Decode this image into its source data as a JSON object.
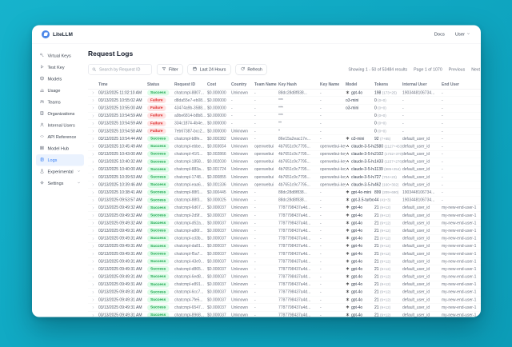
{
  "window": {
    "brand": "LiteLLM",
    "docs_label": "Docs",
    "user_label": "User"
  },
  "sidebar": {
    "items": [
      {
        "label": "Virtual Keys",
        "icon": "key-icon"
      },
      {
        "label": "Test Key",
        "icon": "play-icon"
      },
      {
        "label": "Models",
        "icon": "cube-icon"
      },
      {
        "label": "Usage",
        "icon": "bar-chart-icon"
      },
      {
        "label": "Teams",
        "icon": "users-icon"
      },
      {
        "label": "Organizations",
        "icon": "building-icon"
      },
      {
        "label": "Internal Users",
        "icon": "user-icon"
      },
      {
        "label": "API Reference",
        "icon": "code-icon"
      },
      {
        "label": "Model Hub",
        "icon": "grid-icon"
      },
      {
        "label": "Logs",
        "icon": "logs-icon",
        "active": true
      },
      {
        "label": "Experimental",
        "icon": "flask-icon",
        "expandable": true
      },
      {
        "label": "Settings",
        "icon": "gear-icon",
        "expandable": true
      }
    ]
  },
  "page": {
    "title": "Request Logs",
    "search_placeholder": "Search by Request ID",
    "filter_label": "Filter",
    "time_range_label": "Last 24 Hours",
    "refresh_label": "Refresh",
    "results_summary": "Showing 1 - 50 of 53484 results",
    "page_info": "Page 1 of 1070",
    "prev_label": "Previous",
    "next_label": "Next"
  },
  "table": {
    "columns": [
      "Time",
      "Status",
      "Request ID",
      "Cost",
      "Country",
      "Team Name",
      "Key Hash",
      "Key Name",
      "Model",
      "Tokens",
      "Internal User",
      "End User"
    ],
    "rows": [
      {
        "time": "03/13/2025 11:02:10 AM",
        "status": "Success",
        "request_id": "chatcmpl-8807...",
        "cost": "$0.000000",
        "country": "Unknown",
        "team_name": "-",
        "key_hash": "88dc28d8f838...",
        "key_name": "-",
        "provider": "openai",
        "model": "gpt-4o",
        "tokens": "198",
        "tokens_detail": "(173+25)",
        "internal_user": "1903448106734...",
        "end_user": "-"
      },
      {
        "time": "03/13/2025 10:55:02 AM",
        "status": "Failure",
        "request_id": "d8da55e7-eb08...",
        "cost": "$0.000000",
        "country": "-",
        "team_name": "-",
        "key_hash": "***",
        "key_name": "-",
        "provider": "",
        "model": "o3-mini",
        "tokens": "0",
        "tokens_detail": "(0+0)",
        "internal_user": "-",
        "end_user": "-"
      },
      {
        "time": "03/13/2025 10:55:00 AM",
        "status": "Failure",
        "request_id": "43474a9b-3588...",
        "cost": "$0.000000",
        "country": "-",
        "team_name": "-",
        "key_hash": "***",
        "key_name": "-",
        "provider": "",
        "model": "o3-mini",
        "tokens": "0",
        "tokens_detail": "(0+0)",
        "internal_user": "-",
        "end_user": "-"
      },
      {
        "time": "03/13/2025 10:54:59 AM",
        "status": "Failure",
        "request_id": "a9be6814-b8b8...",
        "cost": "$0.000000",
        "country": "-",
        "team_name": "-",
        "key_hash": "***",
        "key_name": "-",
        "provider": "",
        "model": "",
        "tokens": "0",
        "tokens_detail": "(0+0)",
        "internal_user": "-",
        "end_user": "-"
      },
      {
        "time": "03/13/2025 10:54:59 AM",
        "status": "Failure",
        "request_id": "334c1874-4b4e...",
        "cost": "$0.000000",
        "country": "-",
        "team_name": "-",
        "key_hash": "**",
        "key_name": "-",
        "provider": "",
        "model": "",
        "tokens": "0",
        "tokens_detail": "(0+0)",
        "internal_user": "-",
        "end_user": "-"
      },
      {
        "time": "03/13/2025 10:54:58 AM",
        "status": "Failure",
        "request_id": "7eb67387-bcc2...",
        "cost": "$0.000000",
        "country": "Unknown",
        "team_name": "-",
        "key_hash": "*",
        "key_name": "-",
        "provider": "",
        "model": "",
        "tokens": "0",
        "tokens_detail": "(0+0)",
        "internal_user": "-",
        "end_user": "-"
      },
      {
        "time": "03/13/2025 10:54:44 AM",
        "status": "Success",
        "request_id": "chatcmpl-b8fe...",
        "cost": "$0.000382",
        "country": "Unknown",
        "team_name": "-",
        "key_hash": "86e15a2eac17e...",
        "key_name": "-",
        "provider": "openai",
        "model": "o3-mini",
        "tokens": "92",
        "tokens_detail": "(7+85)",
        "internal_user": "default_user_id",
        "end_user": "-"
      },
      {
        "time": "03/13/2025 10:45:49 AM",
        "status": "Success",
        "request_id": "chatcmpl-ebbe...",
        "cost": "$0.003654",
        "country": "Unknown",
        "team_name": "openwebui",
        "key_hash": "4b7651c9c7795...",
        "key_name": "openwebui-key-2",
        "provider": "anthropic",
        "model": "claude-3-5-hai...",
        "tokens": "2580",
        "tokens_detail": "(2127+453)",
        "internal_user": "default_user_id",
        "end_user": "-"
      },
      {
        "time": "03/13/2025 10:43:00 AM",
        "status": "Success",
        "request_id": "chatcmpl-41f1...",
        "cost": "$0.002866",
        "country": "Unknown",
        "team_name": "openwebui",
        "key_hash": "4b7651c9c7795...",
        "key_name": "openwebui-key-2",
        "provider": "anthropic",
        "model": "claude-3-5-hai...",
        "tokens": "2102",
        "tokens_detail": "(1732+370)",
        "internal_user": "default_user_id",
        "end_user": "-"
      },
      {
        "time": "03/13/2025 10:40:32 AM",
        "status": "Success",
        "request_id": "chatcmpl-1858...",
        "cost": "$0.002030",
        "country": "Unknown",
        "team_name": "openwebui",
        "key_hash": "4b7651c9c7795...",
        "key_name": "openwebui-key-2",
        "provider": "anthropic",
        "model": "claude-3-5-hai...",
        "tokens": "1433",
        "tokens_detail": "(1157+276)",
        "internal_user": "default_user_id",
        "end_user": "-"
      },
      {
        "time": "03/13/2025 10:40:00 AM",
        "status": "Success",
        "request_id": "chatcmpl-883a...",
        "cost": "$0.001724",
        "country": "Unknown",
        "team_name": "openwebui",
        "key_hash": "4b7651c9c7795...",
        "key_name": "openwebui-key-2",
        "provider": "anthropic",
        "model": "claude-3-5-hai...",
        "tokens": "1139",
        "tokens_detail": "(885+254)",
        "internal_user": "default_user_id",
        "end_user": "-"
      },
      {
        "time": "03/13/2025 10:39:53 AM",
        "status": "Success",
        "request_id": "chatcmpl-1748...",
        "cost": "$0.000855",
        "country": "Unknown",
        "team_name": "openwebui",
        "key_hash": "4b7651c9c7795...",
        "key_name": "openwebui-key-2",
        "provider": "anthropic",
        "model": "claude-3-5-hai...",
        "tokens": "727",
        "tokens_detail": "(704+23)",
        "internal_user": "default_user_id",
        "end_user": "-"
      },
      {
        "time": "03/13/2025 10:39:46 AM",
        "status": "Success",
        "request_id": "chatcmpl-eaa6...",
        "cost": "$0.001336",
        "country": "Unknown",
        "team_name": "openwebui",
        "key_hash": "4b7651c9c7795...",
        "key_name": "openwebui-key-2",
        "provider": "anthropic",
        "model": "claude-3-5-hai...",
        "tokens": "462",
        "tokens_detail": "(160+302)",
        "internal_user": "default_user_id",
        "end_user": "-"
      },
      {
        "time": "03/13/2025 10:38:41 AM",
        "status": "Success",
        "request_id": "chatcmpl-88f1...",
        "cost": "$0.000445",
        "country": "Unknown",
        "team_name": "-",
        "key_hash": "88dc28d8f838...",
        "key_name": "-",
        "provider": "openai",
        "model": "gpt-4o-mini",
        "tokens": "899",
        "tokens_detail": "(209+690)",
        "internal_user": "1903448106734...",
        "end_user": "-"
      },
      {
        "time": "03/13/2025 09:53:57 AM",
        "status": "Success",
        "request_id": "chatcmpl-88f3...",
        "cost": "$0.000025",
        "country": "Unknown",
        "team_name": "-",
        "key_hash": "88dc28d8f838...",
        "key_name": "-",
        "provider": "openai",
        "model": "gpt-3.5-turbo",
        "tokens": "44",
        "tokens_detail": "(41+3)",
        "internal_user": "1903448106734...",
        "end_user": "-"
      },
      {
        "time": "03/13/2025 09:49:32 AM",
        "status": "Success",
        "request_id": "chatcmpl-6d67...",
        "cost": "$0.000037",
        "country": "Unknown",
        "team_name": "-",
        "key_hash": "7787798437a4d...",
        "key_name": "-",
        "provider": "openai",
        "model": "gpt-4o",
        "tokens": "21",
        "tokens_detail": "(9+12)",
        "internal_user": "default_user_id",
        "end_user": "my-new-end-user-1"
      },
      {
        "time": "03/13/2025 09:49:32 AM",
        "status": "Success",
        "request_id": "chatcmpl-2d9f...",
        "cost": "$0.000037",
        "country": "Unknown",
        "team_name": "-",
        "key_hash": "7787798437a4d...",
        "key_name": "-",
        "provider": "openai",
        "model": "gpt-4o",
        "tokens": "21",
        "tokens_detail": "(9+12)",
        "internal_user": "default_user_id",
        "end_user": "my-new-end-user-1"
      },
      {
        "time": "03/13/2025 09:49:32 AM",
        "status": "Success",
        "request_id": "chatcmpl-d52a...",
        "cost": "$0.000037",
        "country": "Unknown",
        "team_name": "-",
        "key_hash": "7787798437a4d...",
        "key_name": "-",
        "provider": "openai",
        "model": "gpt-4o",
        "tokens": "21",
        "tokens_detail": "(9+12)",
        "internal_user": "default_user_id",
        "end_user": "my-new-end-user-1"
      },
      {
        "time": "03/13/2025 09:49:31 AM",
        "status": "Success",
        "request_id": "chatcmpl-a86f...",
        "cost": "$0.000037",
        "country": "Unknown",
        "team_name": "-",
        "key_hash": "7787798437a4d...",
        "key_name": "-",
        "provider": "openai",
        "model": "gpt-4o",
        "tokens": "21",
        "tokens_detail": "(9+12)",
        "internal_user": "default_user_id",
        "end_user": "my-new-end-user-1"
      },
      {
        "time": "03/13/2025 09:49:31 AM",
        "status": "Success",
        "request_id": "chatcmpl-cd3b...",
        "cost": "$0.000037",
        "country": "Unknown",
        "team_name": "-",
        "key_hash": "7787798437a4d...",
        "key_name": "-",
        "provider": "openai",
        "model": "gpt-4o",
        "tokens": "21",
        "tokens_detail": "(9+12)",
        "internal_user": "default_user_id",
        "end_user": "my-new-end-user-1"
      },
      {
        "time": "03/13/2025 09:49:31 AM",
        "status": "Success",
        "request_id": "chatcmpl-da81...",
        "cost": "$0.000037",
        "country": "Unknown",
        "team_name": "-",
        "key_hash": "7787798437a4d...",
        "key_name": "-",
        "provider": "openai",
        "model": "gpt-4o",
        "tokens": "21",
        "tokens_detail": "(9+12)",
        "internal_user": "default_user_id",
        "end_user": "my-new-end-user-1"
      },
      {
        "time": "03/13/2025 09:49:31 AM",
        "status": "Success",
        "request_id": "chatcmpl-f5a7...",
        "cost": "$0.000037",
        "country": "Unknown",
        "team_name": "-",
        "key_hash": "7787798437a4d...",
        "key_name": "-",
        "provider": "openai",
        "model": "gpt-4o",
        "tokens": "21",
        "tokens_detail": "(9+12)",
        "internal_user": "default_user_id",
        "end_user": "my-new-end-user-1"
      },
      {
        "time": "03/13/2025 09:49:31 AM",
        "status": "Success",
        "request_id": "chatcmpl-43e9...",
        "cost": "$0.000037",
        "country": "Unknown",
        "team_name": "-",
        "key_hash": "7787798437a4d...",
        "key_name": "-",
        "provider": "openai",
        "model": "gpt-4o",
        "tokens": "21",
        "tokens_detail": "(9+12)",
        "internal_user": "default_user_id",
        "end_user": "my-new-end-user-1"
      },
      {
        "time": "03/13/2025 09:49:31 AM",
        "status": "Success",
        "request_id": "chatcmpl-d865...",
        "cost": "$0.000037",
        "country": "Unknown",
        "team_name": "-",
        "key_hash": "7787798437a4d...",
        "key_name": "-",
        "provider": "openai",
        "model": "gpt-4o",
        "tokens": "21",
        "tokens_detail": "(9+12)",
        "internal_user": "default_user_id",
        "end_user": "my-new-end-user-1"
      },
      {
        "time": "03/13/2025 09:49:31 AM",
        "status": "Success",
        "request_id": "chatcmpl-6ed8...",
        "cost": "$0.000037",
        "country": "Unknown",
        "team_name": "-",
        "key_hash": "7787798437a4d...",
        "key_name": "-",
        "provider": "openai",
        "model": "gpt-4o",
        "tokens": "21",
        "tokens_detail": "(9+12)",
        "internal_user": "default_user_id",
        "end_user": "my-new-end-user-1"
      },
      {
        "time": "03/13/2025 09:49:31 AM",
        "status": "Success",
        "request_id": "chatcmpl-e891...",
        "cost": "$0.000037",
        "country": "Unknown",
        "team_name": "-",
        "key_hash": "7787798437a4d...",
        "key_name": "-",
        "provider": "openai",
        "model": "gpt-4o",
        "tokens": "21",
        "tokens_detail": "(9+12)",
        "internal_user": "default_user_id",
        "end_user": "my-new-end-user-1"
      },
      {
        "time": "03/13/2025 09:49:31 AM",
        "status": "Success",
        "request_id": "chatcmpl-6cc7...",
        "cost": "$0.000037",
        "country": "Unknown",
        "team_name": "-",
        "key_hash": "7787798437a4d...",
        "key_name": "-",
        "provider": "openai",
        "model": "gpt-4o",
        "tokens": "21",
        "tokens_detail": "(9+12)",
        "internal_user": "default_user_id",
        "end_user": "my-new-end-user-1"
      },
      {
        "time": "03/13/2025 09:49:31 AM",
        "status": "Success",
        "request_id": "chatcmpl-7fe5...",
        "cost": "$0.000037",
        "country": "Unknown",
        "team_name": "-",
        "key_hash": "7787798437a4d...",
        "key_name": "-",
        "provider": "openai",
        "model": "gpt-4o",
        "tokens": "21",
        "tokens_detail": "(9+12)",
        "internal_user": "default_user_id",
        "end_user": "my-new-end-user-1"
      },
      {
        "time": "03/13/2025 09:49:31 AM",
        "status": "Success",
        "request_id": "chatcmpl-6547...",
        "cost": "$0.000037",
        "country": "Unknown",
        "team_name": "-",
        "key_hash": "7787798437a4d...",
        "key_name": "-",
        "provider": "openai",
        "model": "gpt-4o",
        "tokens": "21",
        "tokens_detail": "(9+12)",
        "internal_user": "default_user_id",
        "end_user": "my-new-end-user-1"
      },
      {
        "time": "03/13/2025 09:49:31 AM",
        "status": "Success",
        "request_id": "chatcmpl-8968...",
        "cost": "$0.000037",
        "country": "Unknown",
        "team_name": "-",
        "key_hash": "7787798437a4d...",
        "key_name": "-",
        "provider": "openai",
        "model": "gpt-4o",
        "tokens": "21",
        "tokens_detail": "(9+12)",
        "internal_user": "default_user_id",
        "end_user": "my-new-end-user-1"
      },
      {
        "time": "03/13/2025 09:49:31 AM",
        "status": "Success",
        "request_id": "chatcmpl-e977...",
        "cost": "$0.000037",
        "country": "Unknown",
        "team_name": "-",
        "key_hash": "7787798437a4d...",
        "key_name": "-",
        "provider": "openai",
        "model": "gpt-4o",
        "tokens": "21",
        "tokens_detail": "(9+12)",
        "internal_user": "default_user_id",
        "end_user": "my-new-end-user-1"
      }
    ]
  },
  "colors": {
    "background_teal": "#10a9c4",
    "accent_blue": "#3b82f6",
    "success_bg": "#dcfce7",
    "success_text": "#16a34a",
    "failure_bg": "#fee2e2",
    "failure_text": "#dc2626"
  }
}
